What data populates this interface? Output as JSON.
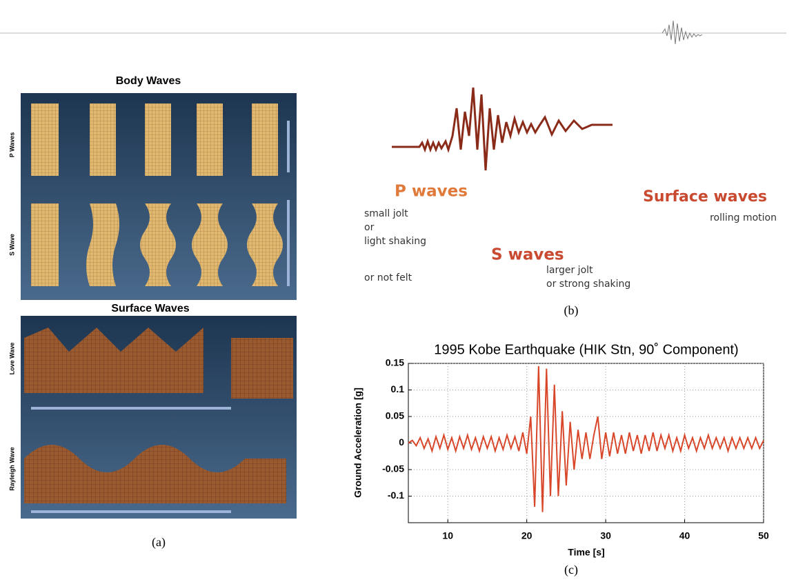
{
  "panel_a": {
    "body_title": "Body Waves",
    "p_label": "P Waves",
    "s_label": "S Wave",
    "surface_title": "Surface Waves",
    "love_label": "Love Wave",
    "rayleigh_label": "Rayleigh Wave",
    "caption": "(a)"
  },
  "panel_b": {
    "p_title": "P waves",
    "p_desc": [
      "small jolt",
      "or",
      "light shaking",
      "or not felt"
    ],
    "s_title": "S waves",
    "s_desc": [
      "larger jolt",
      "or strong shaking"
    ],
    "surface_title": "Surface waves",
    "surface_desc": "rolling motion",
    "caption": "(b)"
  },
  "panel_c": {
    "caption": "(c)",
    "chart_data": {
      "type": "line",
      "title": "1995 Kobe Earthquake (HIK Stn, 90˚ Component)",
      "xlabel": "Time [s]",
      "ylabel": "Ground Acceleration [g]",
      "x": [
        5,
        5.5,
        6,
        6.5,
        7,
        7.5,
        8,
        8.5,
        9,
        9.5,
        10,
        10.5,
        11,
        11.5,
        12,
        12.5,
        13,
        13.5,
        14,
        14.5,
        15,
        15.5,
        16,
        16.5,
        17,
        17.5,
        18,
        18.5,
        19,
        19.5,
        20,
        20.5,
        21,
        21.5,
        22,
        22.5,
        23,
        23.5,
        24,
        24.5,
        25,
        25.5,
        26,
        26.5,
        27,
        27.5,
        28,
        28.5,
        29,
        29.5,
        30,
        30.5,
        31,
        31.5,
        32,
        32.5,
        33,
        33.5,
        34,
        34.5,
        35,
        35.5,
        36,
        36.5,
        37,
        37.5,
        38,
        38.5,
        39,
        39.5,
        40,
        40.5,
        41,
        41.5,
        42,
        42.5,
        43,
        43.5,
        44,
        44.5,
        45,
        45.5,
        46,
        46.5,
        47,
        47.5,
        48,
        48.5,
        49,
        49.5,
        50
      ],
      "series": [
        {
          "color": "#d9472b",
          "values": [
            0,
            0.005,
            -0.005,
            0.01,
            -0.01,
            0.008,
            -0.015,
            0.012,
            -0.01,
            0.015,
            -0.012,
            0.01,
            -0.015,
            0.012,
            -0.01,
            0.015,
            -0.012,
            0.01,
            -0.015,
            0.012,
            -0.01,
            0.012,
            -0.015,
            0.01,
            -0.012,
            0.015,
            -0.01,
            0.012,
            -0.015,
            0.02,
            -0.02,
            0.05,
            -0.12,
            0.145,
            -0.13,
            0.14,
            -0.1,
            0.11,
            -0.1,
            0.06,
            -0.08,
            0.04,
            -0.05,
            0.025,
            -0.03,
            0.02,
            -0.03,
            0.015,
            0.05,
            -0.03,
            0.02,
            -0.025,
            0.02,
            -0.02,
            0.015,
            -0.02,
            0.02,
            -0.015,
            0.015,
            -0.02,
            0.015,
            -0.015,
            0.02,
            -0.015,
            0.015,
            -0.01,
            0.015,
            -0.015,
            0.01,
            -0.015,
            0.015,
            -0.01,
            0.01,
            -0.015,
            0.01,
            -0.01,
            0.015,
            -0.01,
            0.01,
            -0.01,
            0.01,
            -0.015,
            0.01,
            -0.01,
            0.01,
            -0.01,
            0.01,
            -0.01,
            0.01,
            -0.01,
            0.005
          ]
        }
      ],
      "xlim": [
        5,
        50
      ],
      "ylim": [
        -0.15,
        0.15
      ],
      "xticks": [
        10,
        20,
        30,
        40,
        50
      ],
      "yticks": [
        -0.1,
        -0.05,
        0,
        0.05,
        0.1,
        0.15
      ],
      "grid": true
    }
  }
}
